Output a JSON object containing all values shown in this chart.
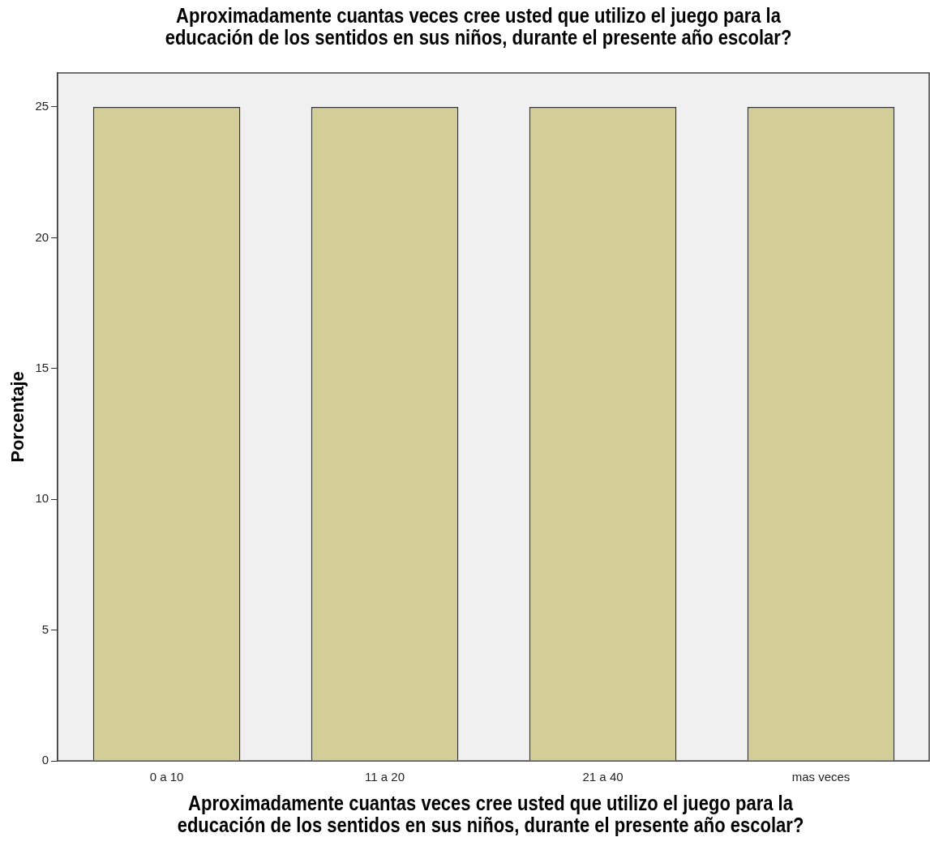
{
  "chart_data": {
    "type": "bar",
    "title": "Aproximadamente cuantas veces cree usted que utilizo el juego para la educación de los sentidos en sus niños, durante el presente año escolar?",
    "xlabel": "Aproximadamente cuantas veces cree usted que utilizo el juego para la educación de los sentidos en sus niños, durante el presente año escolar?",
    "ylabel": "Porcentaje",
    "categories": [
      "0 a 10",
      "11 a 20",
      "21 a 40",
      "mas veces"
    ],
    "values": [
      25,
      25,
      25,
      25
    ],
    "color": "#d3ce97",
    "ylim": [
      0,
      26.3
    ],
    "yticks": [
      0,
      5,
      10,
      15,
      20,
      25
    ],
    "grid": false,
    "legend": false
  }
}
